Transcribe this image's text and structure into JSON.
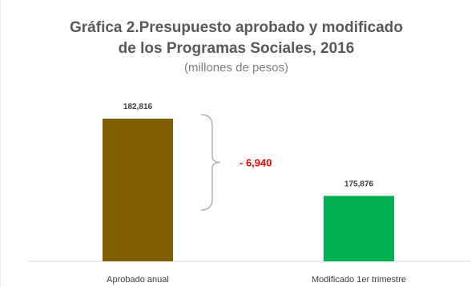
{
  "chart_data": {
    "type": "bar",
    "title_line1": "Gráfica 2.Presupuesto aprobado  y modificado",
    "title_line2": "de los Programas  Sociales, 2016",
    "subtitle": "(millones de pesos)",
    "categories": [
      "Aprobado anual",
      "Modificado 1er trimestre"
    ],
    "values": [
      182816,
      175876
    ],
    "data_labels": [
      "182,816",
      "175,876"
    ],
    "colors": [
      "#7f6000",
      "#00b050"
    ],
    "difference_label": "- 6,940",
    "difference_color": "#ff0000",
    "ylim": [
      170000,
      185000
    ],
    "grid": false,
    "legend": "none"
  }
}
